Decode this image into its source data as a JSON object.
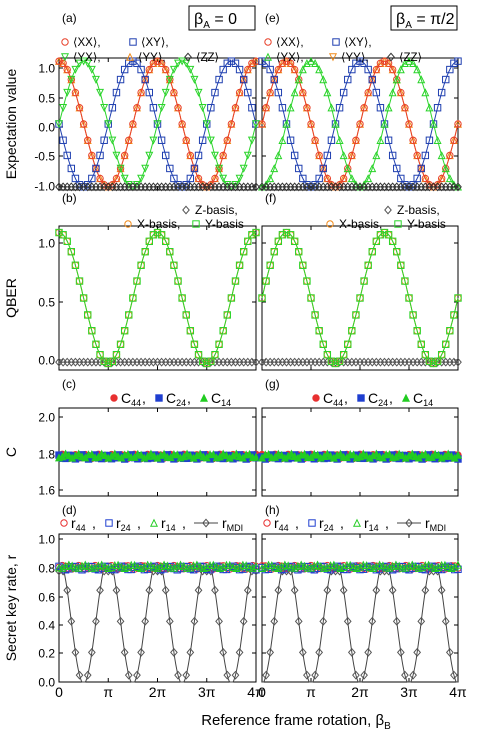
{
  "figure": {
    "xlabel_main": "Reference frame rotation, β",
    "xlabel_sub": "B",
    "x_ticks": [
      "0",
      "π",
      "2π",
      "3π",
      "4π"
    ],
    "x_range_pi": [
      0,
      4
    ]
  },
  "columns": [
    {
      "beta_label": "β",
      "beta_sub": "A",
      "beta_value": " = 0",
      "phase": 0
    },
    {
      "beta_label": "β",
      "beta_sub": "A",
      "beta_value": " = π/2",
      "phase": 1.5707963
    }
  ],
  "rows": [
    {
      "id": "expectation",
      "ylabel": "Expectation value",
      "yticks": [
        "1.0",
        "0.5",
        "0.0",
        "-0.5",
        "-1.0"
      ],
      "ylim": [
        -1.05,
        1.05
      ],
      "panel_letters": [
        "(a)",
        "(e)"
      ],
      "legend": [
        {
          "label": "⟨XX⟩,",
          "color": "#e8402a",
          "marker": "circle"
        },
        {
          "label": "⟨XY⟩,",
          "color": "#1f3fb0",
          "marker": "square"
        },
        {
          "label": "⟨YX⟩,",
          "color": "#2ad42a",
          "marker": "triangle-down"
        },
        {
          "label": "⟨YY⟩,",
          "color": "#f08a1a",
          "marker": "triangle-up"
        },
        {
          "label": "⟨ZZ⟩",
          "color": "#333333",
          "marker": "diamond"
        }
      ]
    },
    {
      "id": "qber",
      "ylabel": "QBER",
      "yticks": [
        "1.0",
        "0.5",
        "0.0"
      ],
      "ylim": [
        -0.05,
        1.05
      ],
      "panel_letters": [
        "(b)",
        "(f)"
      ],
      "legend": [
        {
          "label": "Z-basis,",
          "color": "#555555",
          "marker": "diamond"
        },
        {
          "label": "X-basis,",
          "color": "#f08a1a",
          "marker": "circle"
        },
        {
          "label": "Y-basis",
          "color": "#2ad42a",
          "marker": "square"
        }
      ]
    },
    {
      "id": "concurrence",
      "ylabel": "C",
      "yticks": [
        "2.0",
        "1.8",
        "1.6"
      ],
      "ylim": [
        1.55,
        2.05
      ],
      "panel_letters": [
        "(c)",
        "(g)"
      ],
      "legend": [
        {
          "label": "C",
          "sub": "44",
          "tail": ",",
          "color": "#e83030",
          "marker": "circle"
        },
        {
          "label": "C",
          "sub": "24",
          "tail": ",",
          "color": "#1f3fd0",
          "marker": "square"
        },
        {
          "label": "C",
          "sub": "14",
          "tail": "",
          "color": "#22cc22",
          "marker": "triangle-up"
        }
      ]
    },
    {
      "id": "keyrate",
      "ylabel": "Secret key rate, r",
      "yticks": [
        "1.0",
        "0.8",
        "0.6",
        "0.4",
        "0.2",
        "0.0"
      ],
      "ylim": [
        0,
        1.0
      ],
      "panel_letters": [
        "(d)",
        "(h)"
      ],
      "legend": [
        {
          "label": "r",
          "sub": "44",
          "tail": ",",
          "color": "#e83030",
          "marker": "circle"
        },
        {
          "label": "r",
          "sub": "24",
          "tail": ",",
          "color": "#1f3fd0",
          "marker": "square"
        },
        {
          "label": "r",
          "sub": "14",
          "tail": ",",
          "color": "#22cc22",
          "marker": "triangle-up"
        },
        {
          "label": "r",
          "sub": "MDI",
          "tail": "",
          "color": "#555555",
          "marker": "diamond"
        }
      ]
    }
  ],
  "chart_data": [
    {
      "type": "line",
      "panel": "(a)/(e)",
      "x_range": "0 to 4π",
      "ylim": [
        -1,
        1
      ],
      "series": [
        {
          "name": "⟨XX⟩",
          "model": "cos(β_B - β_A)"
        },
        {
          "name": "⟨XY⟩",
          "model": "-sin(β_B - β_A)"
        },
        {
          "name": "⟨YX⟩",
          "model": "sin(β_B - β_A)"
        },
        {
          "name": "⟨YY⟩",
          "model": "cos(β_B - β_A)"
        },
        {
          "name": "⟨ZZ⟩",
          "model": "-1"
        }
      ]
    },
    {
      "type": "line",
      "panel": "(b)/(f)",
      "ylim": [
        0,
        1
      ],
      "series": [
        {
          "name": "Z-basis",
          "model": "0"
        },
        {
          "name": "X-basis",
          "model": "(1 + cos(β_B - β_A))/2"
        },
        {
          "name": "Y-basis",
          "model": "(1 + cos(β_B - β_A))/2"
        }
      ]
    },
    {
      "type": "scatter",
      "panel": "(c)/(g)",
      "ylim": [
        1.6,
        2.0
      ],
      "series": [
        {
          "name": "C44",
          "approx": 1.77
        },
        {
          "name": "C24",
          "approx": 1.77
        },
        {
          "name": "C14",
          "approx": 1.77
        }
      ]
    },
    {
      "type": "line",
      "panel": "(d)/(h)",
      "ylim": [
        0,
        1.0
      ],
      "series": [
        {
          "name": "r44",
          "approx": 0.77
        },
        {
          "name": "r24",
          "approx": 0.77
        },
        {
          "name": "r14",
          "approx": 0.77
        },
        {
          "name": "rMDI",
          "peak": 0.75,
          "model": "periodic, period π"
        }
      ]
    }
  ]
}
